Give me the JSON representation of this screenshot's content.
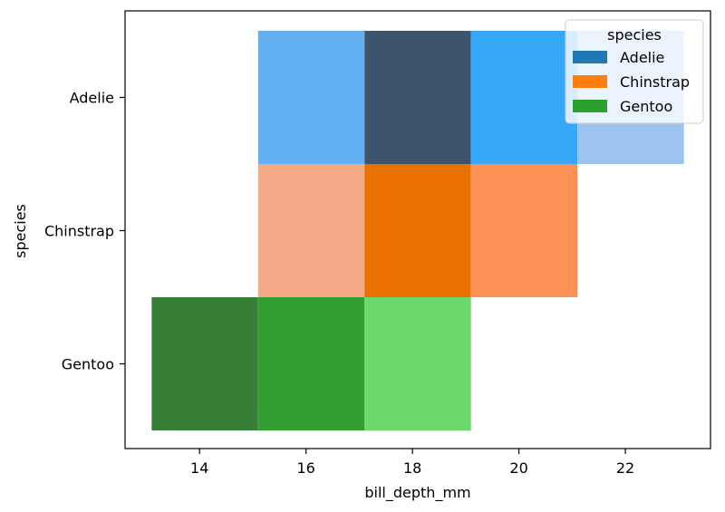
{
  "chart_data": {
    "type": "heatmap",
    "xlabel": "bill_depth_mm",
    "ylabel": "species",
    "xlim": [
      12.6,
      23.6
    ],
    "x_ticks": [
      14,
      16,
      18,
      20,
      22
    ],
    "x_tick_labels": [
      "14",
      "16",
      "18",
      "20",
      "22"
    ],
    "categories": [
      "Adelie",
      "Chinstrap",
      "Gentoo"
    ],
    "bin_edges": [
      13.1,
      15.1,
      17.1,
      19.1,
      21.1,
      23.1
    ],
    "legend": {
      "title": "species",
      "position": "top-right",
      "entries": [
        "Adelie",
        "Chinstrap",
        "Gentoo"
      ]
    },
    "series": [
      {
        "name": "Adelie",
        "color": "#1f77b4",
        "bins": [
          {
            "x0": 15.1,
            "x1": 17.1,
            "color": "#63aff4"
          },
          {
            "x0": 17.1,
            "x1": 19.1,
            "color": "#3e536c"
          },
          {
            "x0": 19.1,
            "x1": 21.1,
            "color": "#37a7f7"
          },
          {
            "x0": 21.1,
            "x1": 23.1,
            "color": "#9dc3f0"
          }
        ]
      },
      {
        "name": "Chinstrap",
        "color": "#ff7f0e",
        "bins": [
          {
            "x0": 15.1,
            "x1": 17.1,
            "color": "#f4a886"
          },
          {
            "x0": 17.1,
            "x1": 19.1,
            "color": "#e87100"
          },
          {
            "x0": 19.1,
            "x1": 21.1,
            "color": "#fc9155"
          }
        ]
      },
      {
        "name": "Gentoo",
        "color": "#2ca02c",
        "bins": [
          {
            "x0": 13.1,
            "x1": 15.1,
            "color": "#377e37"
          },
          {
            "x0": 15.1,
            "x1": 17.1,
            "color": "#319f31"
          },
          {
            "x0": 17.1,
            "x1": 19.1,
            "color": "#6bd86b"
          }
        ]
      }
    ]
  }
}
